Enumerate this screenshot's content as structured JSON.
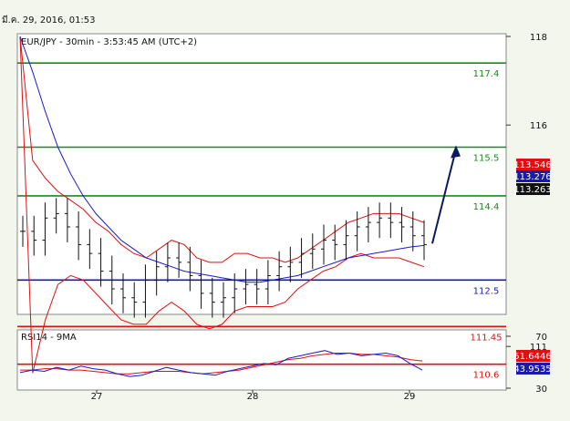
{
  "header": {
    "datetime": "มี.ค. 29, 2016, 01:53"
  },
  "chart_data": [
    {
      "type": "candlestick",
      "title": "EUR/JPY - 30min - 3:53:45 AM (UTC+2)",
      "ylim": [
        110.0,
        118.6
      ],
      "y_ticks": [
        "118",
        "116",
        "111"
      ],
      "y_tick_values": [
        118,
        116,
        111
      ],
      "x_ticks": [
        "27",
        "28",
        "29"
      ],
      "horizontal_lines": [
        {
          "label": "117.4",
          "value": 117.4,
          "color": "#1a8a1a"
        },
        {
          "label": "115.5",
          "value": 115.5,
          "color": "#1a8a1a"
        },
        {
          "label": "114.4",
          "value": 114.4,
          "color": "#1a8a1a"
        },
        {
          "label": "112.5",
          "value": 112.5,
          "color": "#1a1aaa"
        },
        {
          "label": "111.45",
          "value": 111.45,
          "color": "#e01010"
        },
        {
          "label": "110.6",
          "value": 110.6,
          "color": "#e01010"
        }
      ],
      "price_tags": [
        {
          "label": "113.546",
          "value": 113.546,
          "color": "#e01010"
        },
        {
          "label": "113.276",
          "value": 113.276,
          "color": "#1a1aaa"
        },
        {
          "label": "113.263",
          "value": 113.263,
          "color": "#111111"
        }
      ],
      "close_series": [
        113.6,
        113.4,
        113.9,
        114.0,
        113.7,
        113.3,
        113.1,
        112.7,
        112.3,
        112.1,
        112.0,
        112.5,
        112.8,
        113.0,
        112.9,
        112.6,
        112.2,
        112.0,
        112.1,
        112.3,
        112.4,
        112.3,
        112.6,
        112.8,
        112.9,
        113.1,
        113.2,
        113.4,
        113.3,
        113.5,
        113.7,
        113.8,
        113.9,
        113.8,
        113.7,
        113.5,
        113.3
      ],
      "ma_series": [
        118.0,
        117.2,
        116.3,
        115.5,
        114.9,
        114.4,
        114.0,
        113.7,
        113.4,
        113.2,
        113.0,
        112.9,
        112.8,
        112.7,
        112.65,
        112.6,
        112.55,
        112.5,
        112.45,
        112.45,
        112.5,
        112.55,
        112.6,
        112.7,
        112.8,
        112.9,
        113.0,
        113.05,
        113.1,
        113.15,
        113.2,
        113.25,
        113.28
      ],
      "bb_upper": [
        118.0,
        115.2,
        114.8,
        114.5,
        114.3,
        114.1,
        113.8,
        113.6,
        113.3,
        113.1,
        113.0,
        113.2,
        113.4,
        113.3,
        113.0,
        112.9,
        112.9,
        113.1,
        113.1,
        113.0,
        113.0,
        112.9,
        113.0,
        113.2,
        113.4,
        113.6,
        113.8,
        113.9,
        114.0,
        114.0,
        114.0,
        113.9,
        113.8
      ],
      "bb_lower": [
        118.0,
        110.4,
        111.6,
        112.4,
        112.6,
        112.5,
        112.2,
        111.9,
        111.6,
        111.5,
        111.5,
        111.8,
        112.0,
        111.8,
        111.5,
        111.4,
        111.5,
        111.8,
        111.9,
        111.9,
        111.9,
        112.0,
        112.3,
        112.5,
        112.7,
        112.8,
        113.0,
        113.1,
        113.0,
        113.0,
        113.0,
        112.9,
        112.8
      ],
      "annotation": {
        "type": "arrow",
        "from": 113.263,
        "to": 115.5
      }
    },
    {
      "type": "line",
      "title": "RSI14 - 9MA",
      "ylim": [
        30,
        75
      ],
      "y_ticks": [
        "70",
        "30"
      ],
      "y_tick_values": [
        70,
        30
      ],
      "rsi_series": [
        42,
        44,
        43,
        46,
        44,
        47,
        45,
        44,
        41,
        39,
        40,
        43,
        46,
        44,
        42,
        41,
        40,
        43,
        45,
        47,
        49,
        48,
        53,
        55,
        57,
        59,
        56,
        57,
        55,
        56,
        57,
        55,
        49,
        44
      ],
      "ma_series": [
        44,
        44,
        45,
        45,
        44,
        44,
        43,
        42,
        41,
        41,
        42,
        43,
        43,
        43,
        42,
        41,
        42,
        43,
        44,
        46,
        48,
        50,
        52,
        53,
        55,
        56,
        57,
        57,
        56,
        56,
        55,
        54,
        52,
        51
      ],
      "tags": [
        {
          "label": "51.6446",
          "color": "#e01010"
        },
        {
          "label": "43.9535",
          "color": "#1a1aaa"
        }
      ]
    }
  ]
}
